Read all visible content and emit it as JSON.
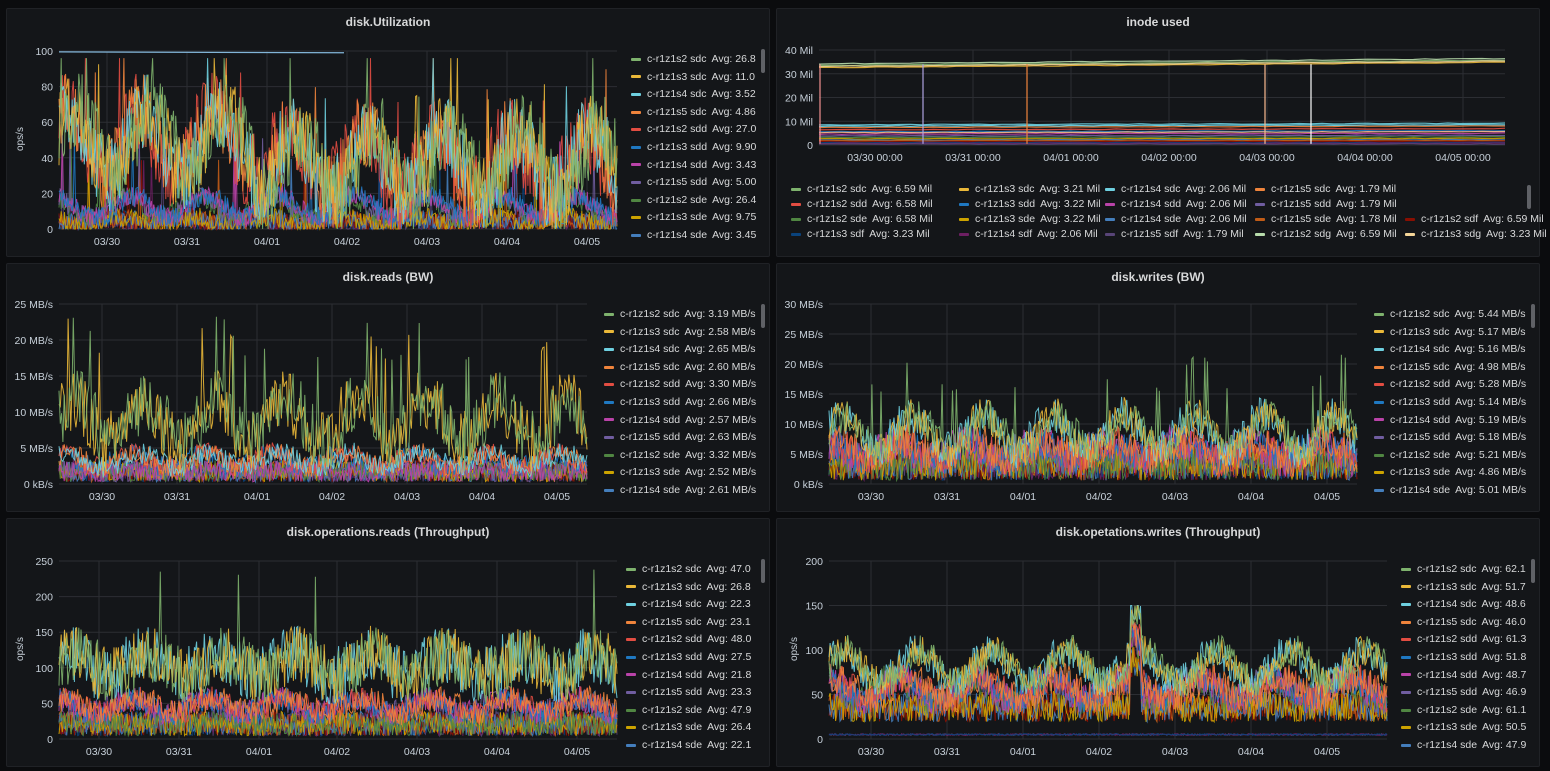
{
  "palette": [
    "#7eb26d",
    "#eab839",
    "#6ed0e0",
    "#ef843c",
    "#e24d42",
    "#1f78c1",
    "#ba43a9",
    "#705da0",
    "#508642",
    "#cca300",
    "#447ebc",
    "#c15c17",
    "#890f02",
    "#0a437c",
    "#6d1f62",
    "#584477",
    "#b7dbab",
    "#f4d598",
    "#70dbed",
    "#f9ba8f",
    "#f29191",
    "#82b5d8",
    "#e5a8e2",
    "#aea2e0",
    "#ffffff"
  ],
  "panels": [
    {
      "id": "disk-utilization",
      "title": "disk.Utilization",
      "box": "p1",
      "chart_data": {
        "type": "line",
        "title": "disk.Utilization",
        "ylabel": "ops/s",
        "ylim": [
          0,
          100
        ],
        "y_ticks": [
          "100",
          "80",
          "60",
          "40",
          "20",
          "0"
        ],
        "y_tick_values": [
          100,
          80,
          60,
          40,
          20,
          0
        ],
        "x_ticks": [
          "03/30",
          "03/31",
          "04/01",
          "04/02",
          "04/03",
          "04/04",
          "04/05"
        ],
        "profile": "util",
        "legend": [
          {
            "name": "c-r1z1s2 sdc",
            "avg": "Avg: 26.8"
          },
          {
            "name": "c-r1z1s3 sdc",
            "avg": "Avg: 11.0"
          },
          {
            "name": "c-r1z1s4 sdc",
            "avg": "Avg: 3.52"
          },
          {
            "name": "c-r1z1s5 sdc",
            "avg": "Avg: 4.86"
          },
          {
            "name": "c-r1z1s2 sdd",
            "avg": "Avg: 27.0"
          },
          {
            "name": "c-r1z1s3 sdd",
            "avg": "Avg: 9.90"
          },
          {
            "name": "c-r1z1s4 sdd",
            "avg": "Avg: 3.43"
          },
          {
            "name": "c-r1z1s5 sdd",
            "avg": "Avg: 5.00"
          },
          {
            "name": "c-r1z1s2 sde",
            "avg": "Avg: 26.4"
          },
          {
            "name": "c-r1z1s3 sde",
            "avg": "Avg: 9.75"
          },
          {
            "name": "c-r1z1s4 sde",
            "avg": "Avg: 3.45"
          }
        ]
      }
    },
    {
      "id": "inode-used",
      "title": "inode used",
      "box": "p2",
      "chart_data": {
        "type": "line",
        "title": "inode used",
        "ylabel": "",
        "ylim": [
          0,
          40
        ],
        "y_ticks": [
          "40 Mil",
          "30 Mil",
          "20 Mil",
          "10 Mil",
          "0"
        ],
        "y_tick_values": [
          40,
          30,
          20,
          10,
          0
        ],
        "x_ticks": [
          "03/30 00:00",
          "03/31 00:00",
          "04/01 00:00",
          "04/02 00:00",
          "04/03 00:00",
          "04/04 00:00",
          "04/05 00:00"
        ],
        "profile": "inode",
        "legend_rows": [
          [
            {
              "name": "c-r1z1s2 sdc",
              "avg": "Avg: 6.59 Mil",
              "c": 0
            },
            {
              "name": "c-r1z1s3 sdc",
              "avg": "Avg: 3.21 Mil",
              "c": 1
            },
            {
              "name": "c-r1z1s4 sdc",
              "avg": "Avg: 2.06 Mil",
              "c": 2
            },
            {
              "name": "c-r1z1s5 sdc",
              "avg": "Avg: 1.79 Mil",
              "c": 3
            }
          ],
          [
            {
              "name": "c-r1z1s2 sdd",
              "avg": "Avg: 6.58 Mil",
              "c": 4
            },
            {
              "name": "c-r1z1s3 sdd",
              "avg": "Avg: 3.22 Mil",
              "c": 5
            },
            {
              "name": "c-r1z1s4 sdd",
              "avg": "Avg: 2.06 Mil",
              "c": 6
            },
            {
              "name": "c-r1z1s5 sdd",
              "avg": "Avg: 1.79 Mil",
              "c": 7
            }
          ],
          [
            {
              "name": "c-r1z1s2 sde",
              "avg": "Avg: 6.58 Mil",
              "c": 8
            },
            {
              "name": "c-r1z1s3 sde",
              "avg": "Avg: 3.22 Mil",
              "c": 9
            },
            {
              "name": "c-r1z1s4 sde",
              "avg": "Avg: 2.06 Mil",
              "c": 10
            },
            {
              "name": "c-r1z1s5 sde",
              "avg": "Avg: 1.78 Mil",
              "c": 11
            },
            {
              "name": "c-r1z1s2 sdf",
              "avg": "Avg: 6.59 Mil",
              "c": 12
            }
          ],
          [
            {
              "name": "c-r1z1s3 sdf",
              "avg": "Avg: 3.23 Mil",
              "c": 13
            },
            {
              "name": "c-r1z1s4 sdf",
              "avg": "Avg: 2.06 Mil",
              "c": 14
            },
            {
              "name": "c-r1z1s5 sdf",
              "avg": "Avg: 1.79 Mil",
              "c": 15
            },
            {
              "name": "c-r1z1s2 sdg",
              "avg": "Avg: 6.59 Mil",
              "c": 16
            },
            {
              "name": "c-r1z1s3 sdg",
              "avg": "Avg: 3.23 Mil",
              "c": 17
            }
          ]
        ]
      }
    },
    {
      "id": "disk-reads-bw",
      "title": "disk.reads (BW)",
      "box": "p3",
      "chart_data": {
        "type": "line",
        "title": "disk.reads (BW)",
        "ylabel": "",
        "ylim": [
          0,
          25
        ],
        "y_ticks": [
          "25 MB/s",
          "20 MB/s",
          "15 MB/s",
          "10 MB/s",
          "5 MB/s",
          "0 kB/s"
        ],
        "y_tick_values": [
          25,
          20,
          15,
          10,
          5,
          0
        ],
        "x_ticks": [
          "03/30",
          "03/31",
          "04/01",
          "04/02",
          "04/03",
          "04/04",
          "04/05"
        ],
        "profile": "reads",
        "legend": [
          {
            "name": "c-r1z1s2 sdc",
            "avg": "Avg: 3.19 MB/s"
          },
          {
            "name": "c-r1z1s3 sdc",
            "avg": "Avg: 2.58 MB/s"
          },
          {
            "name": "c-r1z1s4 sdc",
            "avg": "Avg: 2.65 MB/s"
          },
          {
            "name": "c-r1z1s5 sdc",
            "avg": "Avg: 2.60 MB/s"
          },
          {
            "name": "c-r1z1s2 sdd",
            "avg": "Avg: 3.30 MB/s"
          },
          {
            "name": "c-r1z1s3 sdd",
            "avg": "Avg: 2.66 MB/s"
          },
          {
            "name": "c-r1z1s4 sdd",
            "avg": "Avg: 2.57 MB/s"
          },
          {
            "name": "c-r1z1s5 sdd",
            "avg": "Avg: 2.63 MB/s"
          },
          {
            "name": "c-r1z1s2 sde",
            "avg": "Avg: 3.32 MB/s"
          },
          {
            "name": "c-r1z1s3 sde",
            "avg": "Avg: 2.52 MB/s"
          },
          {
            "name": "c-r1z1s4 sde",
            "avg": "Avg: 2.61 MB/s"
          }
        ]
      }
    },
    {
      "id": "disk-writes-bw",
      "title": "disk.writes (BW)",
      "box": "p4",
      "chart_data": {
        "type": "line",
        "title": "disk.writes (BW)",
        "ylabel": "",
        "ylim": [
          0,
          30
        ],
        "y_ticks": [
          "30 MB/s",
          "25 MB/s",
          "20 MB/s",
          "15 MB/s",
          "10 MB/s",
          "5 MB/s",
          "0 kB/s"
        ],
        "y_tick_values": [
          30,
          25,
          20,
          15,
          10,
          5,
          0
        ],
        "x_ticks": [
          "03/30",
          "03/31",
          "04/01",
          "04/02",
          "04/03",
          "04/04",
          "04/05"
        ],
        "profile": "writes",
        "legend": [
          {
            "name": "c-r1z1s2 sdc",
            "avg": "Avg: 5.44 MB/s"
          },
          {
            "name": "c-r1z1s3 sdc",
            "avg": "Avg: 5.17 MB/s"
          },
          {
            "name": "c-r1z1s4 sdc",
            "avg": "Avg: 5.16 MB/s"
          },
          {
            "name": "c-r1z1s5 sdc",
            "avg": "Avg: 4.98 MB/s"
          },
          {
            "name": "c-r1z1s2 sdd",
            "avg": "Avg: 5.28 MB/s"
          },
          {
            "name": "c-r1z1s3 sdd",
            "avg": "Avg: 5.14 MB/s"
          },
          {
            "name": "c-r1z1s4 sdd",
            "avg": "Avg: 5.19 MB/s"
          },
          {
            "name": "c-r1z1s5 sdd",
            "avg": "Avg: 5.18 MB/s"
          },
          {
            "name": "c-r1z1s2 sde",
            "avg": "Avg: 5.21 MB/s"
          },
          {
            "name": "c-r1z1s3 sde",
            "avg": "Avg: 4.86 MB/s"
          },
          {
            "name": "c-r1z1s4 sde",
            "avg": "Avg: 5.01 MB/s"
          }
        ]
      }
    },
    {
      "id": "disk-operations-reads",
      "title": "disk.operations.reads (Throughput)",
      "box": "p5",
      "chart_data": {
        "type": "line",
        "title": "disk.operations.reads (Throughput)",
        "ylabel": "ops/s",
        "ylim": [
          0,
          250
        ],
        "y_ticks": [
          "250",
          "200",
          "150",
          "100",
          "50",
          "0"
        ],
        "y_tick_values": [
          250,
          200,
          150,
          100,
          50,
          0
        ],
        "x_ticks": [
          "03/30",
          "03/31",
          "04/01",
          "04/02",
          "04/03",
          "04/04",
          "04/05"
        ],
        "profile": "opsreads",
        "legend": [
          {
            "name": "c-r1z1s2 sdc",
            "avg": "Avg: 47.0"
          },
          {
            "name": "c-r1z1s3 sdc",
            "avg": "Avg: 26.8"
          },
          {
            "name": "c-r1z1s4 sdc",
            "avg": "Avg: 22.3"
          },
          {
            "name": "c-r1z1s5 sdc",
            "avg": "Avg: 23.1"
          },
          {
            "name": "c-r1z1s2 sdd",
            "avg": "Avg: 48.0"
          },
          {
            "name": "c-r1z1s3 sdd",
            "avg": "Avg: 27.5"
          },
          {
            "name": "c-r1z1s4 sdd",
            "avg": "Avg: 21.8"
          },
          {
            "name": "c-r1z1s5 sdd",
            "avg": "Avg: 23.3"
          },
          {
            "name": "c-r1z1s2 sde",
            "avg": "Avg: 47.9"
          },
          {
            "name": "c-r1z1s3 sde",
            "avg": "Avg: 26.4"
          },
          {
            "name": "c-r1z1s4 sde",
            "avg": "Avg: 22.1"
          }
        ]
      }
    },
    {
      "id": "disk-opetations-writes",
      "title": "disk.opetations.writes (Throughput)",
      "box": "p6",
      "chart_data": {
        "type": "line",
        "title": "disk.opetations.writes (Throughput)",
        "ylabel": "ops/s",
        "ylim": [
          0,
          200
        ],
        "y_ticks": [
          "200",
          "150",
          "100",
          "50",
          "0"
        ],
        "y_tick_values": [
          200,
          150,
          100,
          50,
          0
        ],
        "x_ticks": [
          "03/30",
          "03/31",
          "04/01",
          "04/02",
          "04/03",
          "04/04",
          "04/05"
        ],
        "profile": "opswrites",
        "legend": [
          {
            "name": "c-r1z1s2 sdc",
            "avg": "Avg: 62.1"
          },
          {
            "name": "c-r1z1s3 sdc",
            "avg": "Avg: 51.7"
          },
          {
            "name": "c-r1z1s4 sdc",
            "avg": "Avg: 48.6"
          },
          {
            "name": "c-r1z1s5 sdc",
            "avg": "Avg: 46.0"
          },
          {
            "name": "c-r1z1s2 sdd",
            "avg": "Avg: 61.3"
          },
          {
            "name": "c-r1z1s3 sdd",
            "avg": "Avg: 51.8"
          },
          {
            "name": "c-r1z1s4 sdd",
            "avg": "Avg: 48.7"
          },
          {
            "name": "c-r1z1s5 sdd",
            "avg": "Avg: 46.9"
          },
          {
            "name": "c-r1z1s2 sde",
            "avg": "Avg: 61.1"
          },
          {
            "name": "c-r1z1s3 sde",
            "avg": "Avg: 50.5"
          },
          {
            "name": "c-r1z1s4 sde",
            "avg": "Avg: 47.9"
          }
        ]
      }
    }
  ]
}
